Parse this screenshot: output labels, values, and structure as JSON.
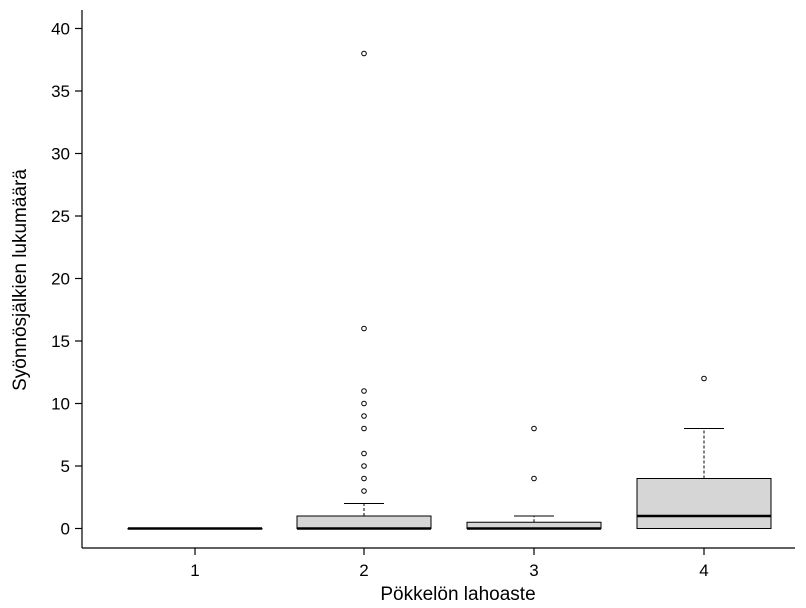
{
  "chart_data": {
    "type": "box",
    "xlabel": "Pökkelön lahoaste",
    "ylabel": "Syönnösjälkien lukumäärä",
    "categories": [
      "1",
      "2",
      "3",
      "4"
    ],
    "ylim": [
      -1.5,
      41.5
    ],
    "yticks": [
      0,
      5,
      10,
      15,
      20,
      25,
      30,
      35,
      40
    ],
    "grid": false,
    "boxes": [
      {
        "category": "1",
        "q1": 0,
        "median": 0,
        "q3": 0,
        "whisker_low": 0,
        "whisker_high": 0,
        "outliers": []
      },
      {
        "category": "2",
        "q1": 0,
        "median": 0,
        "q3": 1,
        "whisker_low": 0,
        "whisker_high": 2,
        "outliers": [
          3,
          4,
          5,
          6,
          8,
          9,
          10,
          11,
          16,
          38
        ]
      },
      {
        "category": "3",
        "q1": 0,
        "median": 0,
        "q3": 0.5,
        "whisker_low": 0,
        "whisker_high": 1,
        "outliers": [
          4,
          8
        ]
      },
      {
        "category": "4",
        "q1": 0,
        "median": 1,
        "q3": 4,
        "whisker_low": 0,
        "whisker_high": 8,
        "outliers": [
          12
        ]
      }
    ],
    "colors": {
      "box_fill": "#d6d6d6",
      "stroke": "#000000"
    }
  }
}
